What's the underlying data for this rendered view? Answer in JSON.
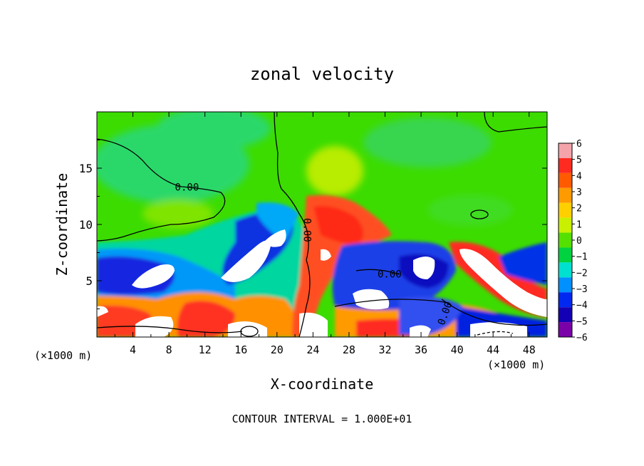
{
  "chart_data": {
    "type": "heatmap",
    "title": "zonal velocity",
    "xlabel": "X-coordinate",
    "ylabel": "Z-coordinate",
    "x_units_left": "(×1000 m)",
    "x_units_right": "(×1000 m)",
    "xlim": [
      0,
      50
    ],
    "ylim": [
      0,
      20
    ],
    "xticks": [
      4,
      8,
      12,
      16,
      20,
      24,
      28,
      32,
      36,
      40,
      44,
      48
    ],
    "yticks": [
      5,
      10,
      15
    ],
    "colorbar": {
      "ticks": [
        6,
        5,
        4,
        3,
        2,
        1,
        0,
        -1,
        -2,
        -3,
        -4,
        -5,
        -6
      ],
      "colors": [
        "#f4a3ab",
        "#ff2a20",
        "#ff5a00",
        "#ff9a00",
        "#ffd000",
        "#c8f000",
        "#54e000",
        "#00d240",
        "#00e0d0",
        "#0090ff",
        "#0028f0",
        "#1400b4",
        "#7a00a8"
      ]
    },
    "contour_labels": [
      {
        "text": "0.00",
        "x": 10,
        "y": 13
      },
      {
        "text": "0.00",
        "x": 23,
        "y": 9.5
      },
      {
        "text": "0.00",
        "x": 32.5,
        "y": 5.3
      },
      {
        "text": "0.00",
        "x": 39,
        "y": 2
      }
    ],
    "footer": "CONTOUR INTERVAL = 1.000E+01"
  }
}
